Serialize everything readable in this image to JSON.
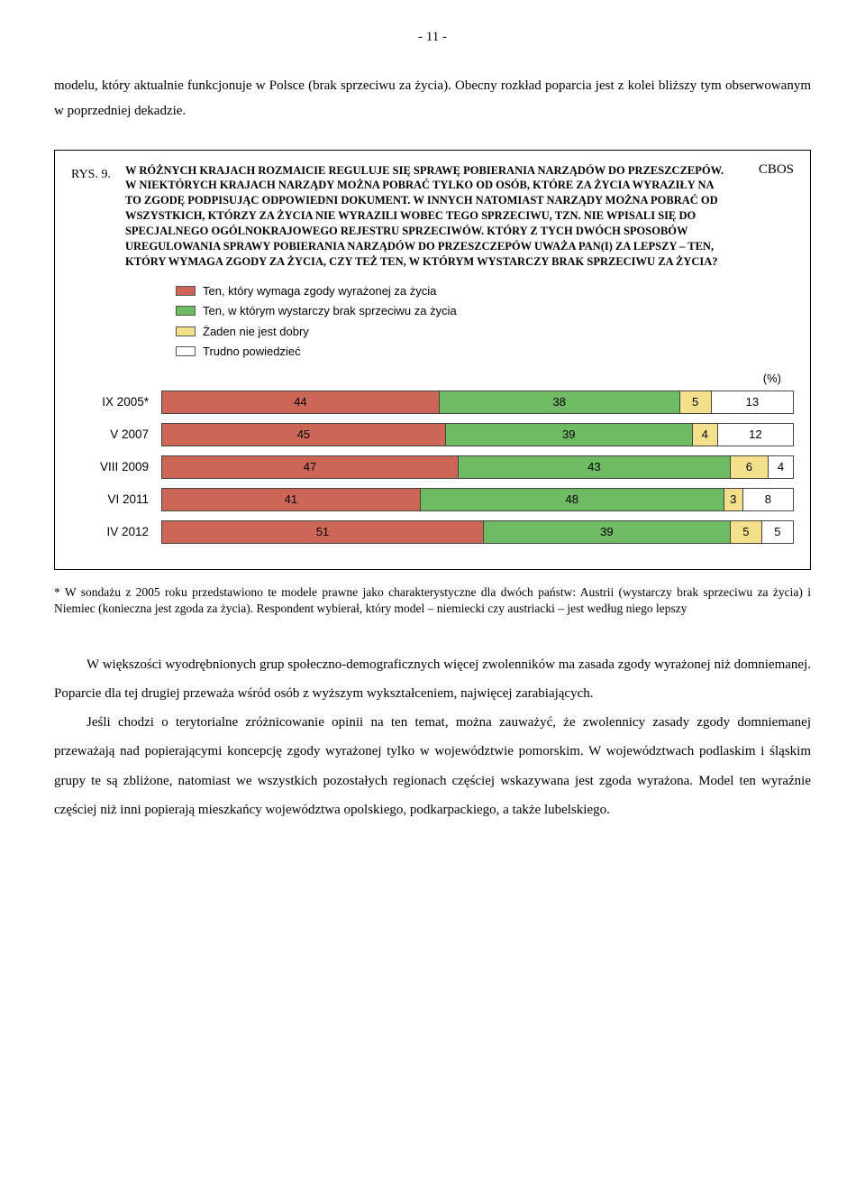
{
  "page_number": "- 11 -",
  "intro_paragraph": "modelu, który aktualnie funkcjonuje w Polsce (brak sprzeciwu za życia). Obecny rozkład poparcia jest z kolei bliższy tym obserwowanym w poprzedniej dekadzie.",
  "figure": {
    "cbos": "CBOS",
    "rys_label": "RYS. 9.",
    "question": "W RÓŻNYCH KRAJACH ROZMAICIE REGULUJE SIĘ SPRAWĘ POBIERANIA NARZĄDÓW DO PRZESZCZEPÓW. W NIEKTÓRYCH KRAJACH NARZĄDY MOŻNA POBRAĆ TYLKO OD OSÓB, KTÓRE ZA ŻYCIA WYRAZIŁY NA TO ZGODĘ PODPISUJĄC ODPOWIEDNI DOKUMENT. W INNYCH NATOMIAST NARZĄDY MOŻNA POBRAĆ OD WSZYSTKICH, KTÓRZY ZA ŻYCIA NIE WYRAZILI WOBEC TEGO SPRZECIWU, TZN. NIE WPISALI SIĘ DO SPECJALNEGO OGÓLNOKRAJOWEGO REJESTRU SPRZECIWÓW. KTÓRY Z TYCH DWÓCH SPOSOBÓW UREGULOWANIA SPRAWY POBIERANIA NARZĄDÓW DO PRZESZCZEPÓW UWAŻA PAN(I) ZA LEPSZY – TEN, KTÓRY WYMAGA ZGODY ZA ŻYCIA, CZY TEŻ TEN, W KTÓRYM WYSTARCZY BRAK SPRZECIWU ZA ŻYCIA?",
    "legend": [
      {
        "label": "Ten, który wymaga zgody wyrażonej za życia",
        "color": "#cc6657"
      },
      {
        "label": "Ten, w którym wystarczy brak sprzeciwu za życia",
        "color": "#6fbb63"
      },
      {
        "label": "Żaden nie jest dobry",
        "color": "#f4e08a"
      },
      {
        "label": "Trudno powiedzieć",
        "color": "#ffffff"
      }
    ],
    "percent_label": "(%)",
    "chart": {
      "type": "stacked-horizontal-bar",
      "colors": [
        "#cc6657",
        "#6fbb63",
        "#f4e08a",
        "#ffffff"
      ],
      "rows": [
        {
          "label": "IX 2005*",
          "values": [
            44,
            38,
            5,
            13
          ]
        },
        {
          "label": "V 2007",
          "values": [
            45,
            39,
            4,
            12
          ]
        },
        {
          "label": "VIII 2009",
          "values": [
            47,
            43,
            6,
            4
          ]
        },
        {
          "label": "VI 2011",
          "values": [
            41,
            48,
            3,
            8
          ]
        },
        {
          "label": "IV 2012",
          "values": [
            51,
            39,
            5,
            5
          ]
        }
      ]
    }
  },
  "footnote": "* W sondażu z 2005 roku przedstawiono te modele prawne jako charakterystyczne dla dwóch państw: Austrii (wystarczy brak sprzeciwu za życia) i Niemiec (konieczna jest zgoda za życia). Respondent wybierał, który model – niemiecki czy austriacki – jest według niego lepszy",
  "para1": "W większości wyodrębnionych grup społeczno-demograficznych więcej zwolenników ma zasada zgody wyrażonej niż domniemanej. Poparcie dla tej drugiej przeważa wśród osób z wyższym wykształceniem, najwięcej zarabiających.",
  "para2": "Jeśli chodzi o terytorialne zróżnicowanie opinii na ten temat, można zauważyć, że zwolennicy zasady zgody domniemanej przeważają nad popierającymi koncepcję zgody wyrażonej tylko w województwie pomorskim. W województwach podlaskim i śląskim grupy te są zbliżone, natomiast we wszystkich pozostałych regionach częściej wskazywana jest zgoda wyrażona. Model ten wyraźnie częściej niż inni popierają mieszkańcy województwa opolskiego, podkarpackiego, a także lubelskiego."
}
